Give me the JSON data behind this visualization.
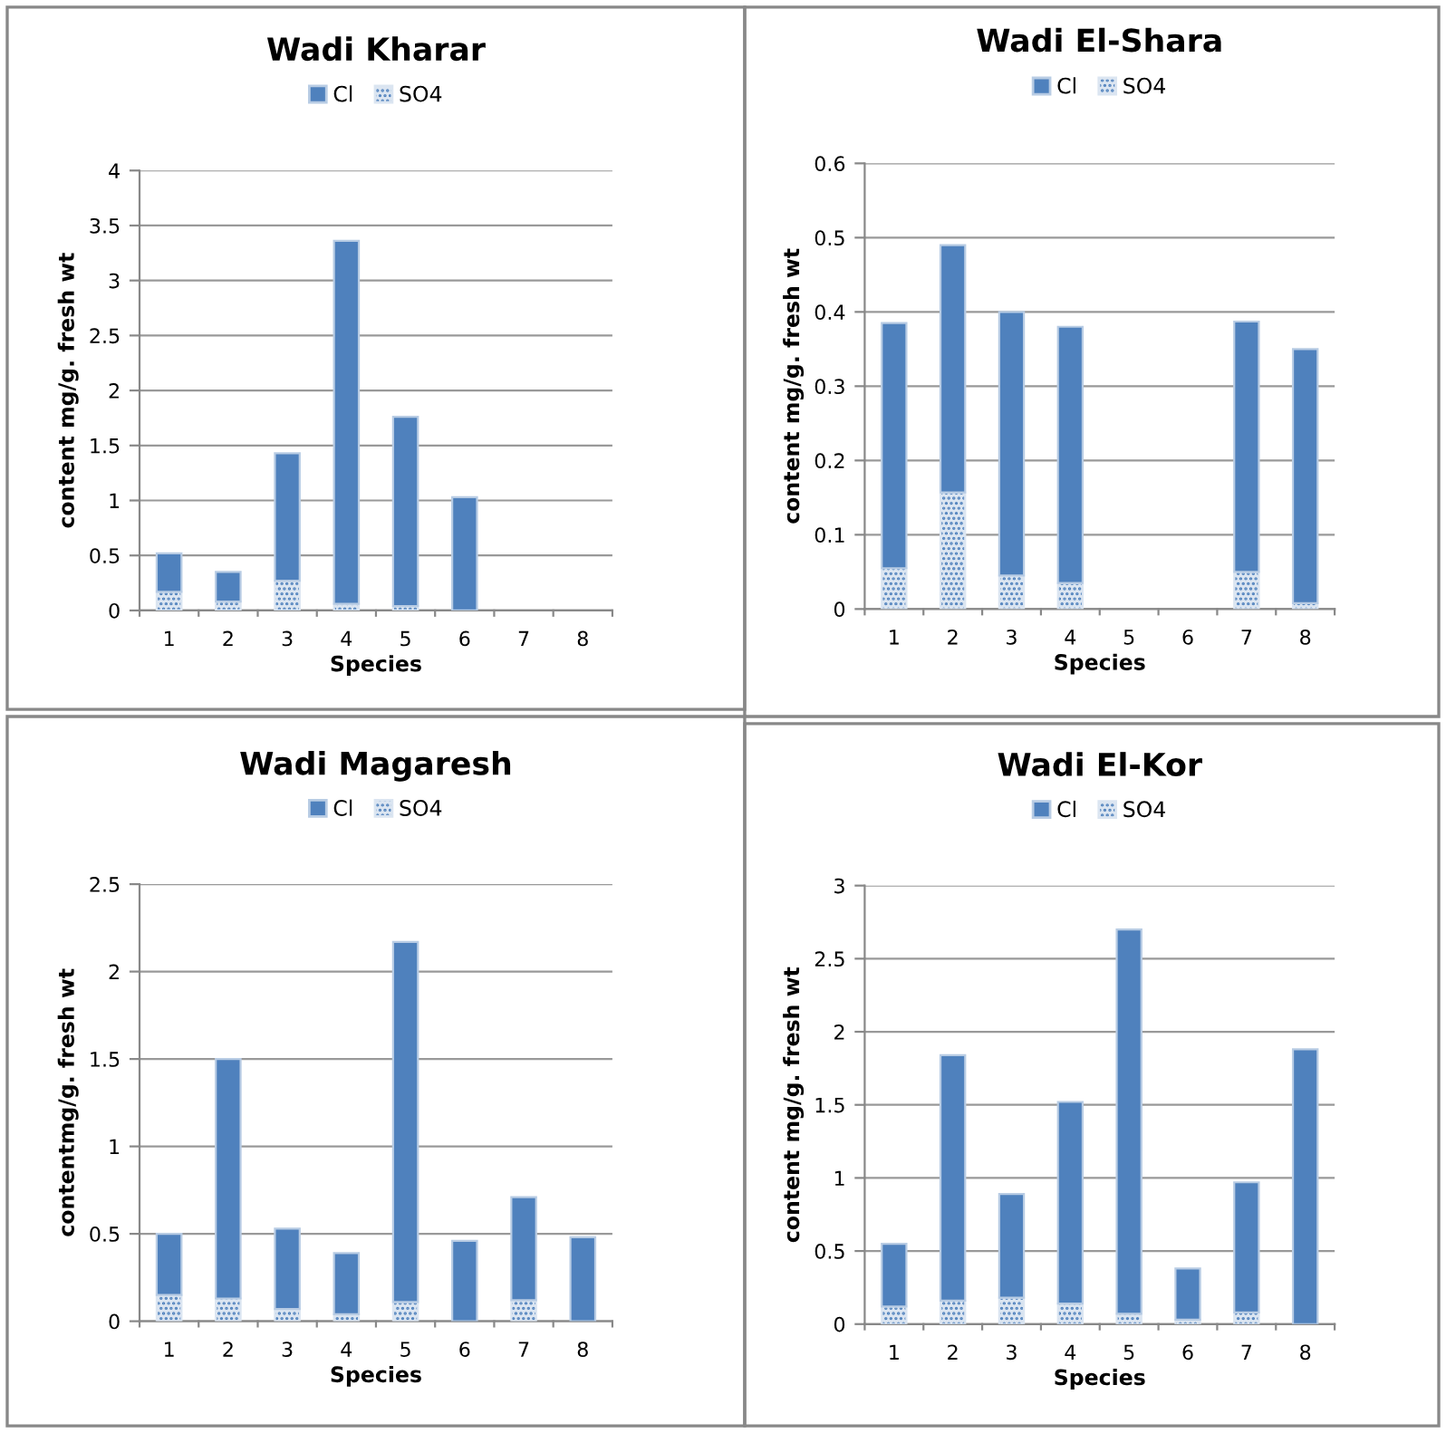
{
  "chart_data": [
    {
      "type": "bar",
      "title": "Wadi Kharar",
      "xlabel": "Species",
      "ylabel": "content mg/g. fresh wt",
      "categories": [
        "1",
        "2",
        "3",
        "4",
        "5",
        "6",
        "7",
        "8"
      ],
      "stacked": true,
      "legend": "top",
      "grid": "y",
      "ylim": [
        0,
        4
      ],
      "yticks": [
        0,
        0.5,
        1,
        1.5,
        2,
        2.5,
        3,
        3.5,
        4
      ],
      "series": [
        {
          "name": "SO4",
          "color": "#dbe5f1",
          "values": [
            0.17,
            0.08,
            0.27,
            0.06,
            0.04,
            null,
            null,
            null
          ]
        },
        {
          "name": "Cl",
          "color": "#4f81bd",
          "values": [
            0.35,
            0.27,
            1.16,
            3.3,
            1.72,
            1.03,
            null,
            null
          ]
        }
      ]
    },
    {
      "type": "bar",
      "title": "Wadi El-Shara",
      "xlabel": "Species",
      "ylabel": "content mg/g. fresh wt",
      "categories": [
        "1",
        "2",
        "3",
        "4",
        "5",
        "6",
        "7",
        "8"
      ],
      "stacked": true,
      "legend": "top",
      "grid": "y",
      "ylim": [
        0,
        0.6
      ],
      "yticks": [
        0,
        0.1,
        0.2,
        0.3,
        0.4,
        0.5,
        0.6
      ],
      "series": [
        {
          "name": "SO4",
          "color": "#dbe5f1",
          "values": [
            0.055,
            0.157,
            0.045,
            0.035,
            null,
            null,
            0.05,
            0.008
          ]
        },
        {
          "name": "Cl",
          "color": "#4f81bd",
          "values": [
            0.33,
            0.333,
            0.355,
            0.345,
            null,
            null,
            0.337,
            0.342
          ]
        }
      ]
    },
    {
      "type": "bar",
      "title": "Wadi Magaresh",
      "xlabel": "Species",
      "ylabel": "contentmg/g. fresh wt",
      "categories": [
        "1",
        "2",
        "3",
        "4",
        "5",
        "6",
        "7",
        "8"
      ],
      "stacked": true,
      "legend": "top",
      "grid": "y",
      "ylim": [
        0,
        2.5
      ],
      "yticks": [
        0,
        0.5,
        1,
        1.5,
        2,
        2.5
      ],
      "series": [
        {
          "name": "SO4",
          "color": "#dbe5f1",
          "values": [
            0.15,
            0.13,
            0.07,
            0.04,
            0.11,
            null,
            0.12,
            null
          ]
        },
        {
          "name": "Cl",
          "color": "#4f81bd",
          "values": [
            0.35,
            1.37,
            0.46,
            0.35,
            2.06,
            0.46,
            0.59,
            0.48
          ]
        }
      ]
    },
    {
      "type": "bar",
      "title": "Wadi El-Kor",
      "xlabel": "Species",
      "ylabel": "content mg/g. fresh wt",
      "categories": [
        "1",
        "2",
        "3",
        "4",
        "5",
        "6",
        "7",
        "8"
      ],
      "stacked": true,
      "legend": "top",
      "grid": "y",
      "ylim": [
        0,
        3
      ],
      "yticks": [
        0,
        0.5,
        1,
        1.5,
        2,
        2.5,
        3
      ],
      "series": [
        {
          "name": "SO4",
          "color": "#dbe5f1",
          "values": [
            0.12,
            0.16,
            0.18,
            0.14,
            0.07,
            0.03,
            0.08,
            null
          ]
        },
        {
          "name": "Cl",
          "color": "#4f81bd",
          "values": [
            0.43,
            1.68,
            0.71,
            1.38,
            2.63,
            0.35,
            0.89,
            1.88
          ]
        }
      ]
    }
  ]
}
